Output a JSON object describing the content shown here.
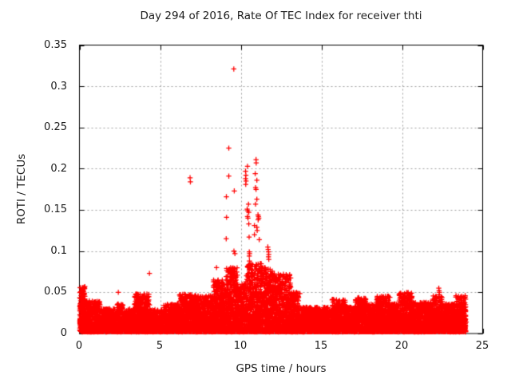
{
  "chart_data": {
    "type": "scatter",
    "title": "Day 294 of 2016, Rate Of TEC Index for receiver thti",
    "xlabel": "GPS time / hours",
    "ylabel": "ROTI / TECUs",
    "xlim": [
      0,
      25
    ],
    "ylim": [
      0,
      0.35
    ],
    "x_ticks": [
      "0",
      "5",
      "10",
      "15",
      "20",
      "25"
    ],
    "y_ticks": [
      "0",
      "0.05",
      "0.1",
      "0.15",
      "0.2",
      "0.25",
      "0.3",
      "0.35"
    ],
    "x_tick_values": [
      0,
      5,
      10,
      15,
      20,
      25
    ],
    "y_tick_values": [
      0,
      0.05,
      0.1,
      0.15,
      0.2,
      0.25,
      0.3,
      0.35
    ],
    "grid": true,
    "legend": null,
    "marker": "plus",
    "marker_color": "#ff0000",
    "baseline_ymin": 0.002,
    "baseline_segments": [
      [
        0.02,
        0.35,
        220,
        0.057
      ],
      [
        0.35,
        1.3,
        450,
        0.04
      ],
      [
        1.3,
        2.3,
        420,
        0.03
      ],
      [
        2.3,
        2.7,
        180,
        0.036
      ],
      [
        2.7,
        3.4,
        300,
        0.03
      ],
      [
        3.4,
        4.35,
        450,
        0.048
      ],
      [
        4.35,
        5.2,
        360,
        0.029
      ],
      [
        5.2,
        6.2,
        420,
        0.036
      ],
      [
        6.2,
        7.2,
        450,
        0.048
      ],
      [
        7.2,
        8.3,
        480,
        0.046
      ],
      [
        8.3,
        9.1,
        400,
        0.065
      ],
      [
        9.1,
        9.8,
        380,
        0.08
      ],
      [
        9.8,
        10.3,
        260,
        0.06
      ],
      [
        10.3,
        11.3,
        520,
        0.085
      ],
      [
        11.3,
        12.1,
        420,
        0.08
      ],
      [
        12.1,
        13.1,
        480,
        0.072
      ],
      [
        13.1,
        13.7,
        280,
        0.05
      ],
      [
        13.7,
        15.6,
        760,
        0.032
      ],
      [
        15.6,
        16.5,
        400,
        0.042
      ],
      [
        16.5,
        17.1,
        260,
        0.033
      ],
      [
        17.1,
        17.8,
        320,
        0.044
      ],
      [
        17.8,
        18.4,
        280,
        0.036
      ],
      [
        18.4,
        19.3,
        400,
        0.046
      ],
      [
        19.3,
        19.8,
        220,
        0.036
      ],
      [
        19.8,
        20.7,
        420,
        0.05
      ],
      [
        20.7,
        21.9,
        500,
        0.038
      ],
      [
        21.9,
        22.5,
        260,
        0.046
      ],
      [
        22.5,
        23.3,
        340,
        0.036
      ],
      [
        23.3,
        23.97,
        320,
        0.046
      ]
    ],
    "outliers": [
      [
        2.41,
        0.05
      ],
      [
        4.34,
        0.073
      ],
      [
        6.86,
        0.189
      ],
      [
        6.88,
        0.184
      ],
      [
        8.5,
        0.08
      ],
      [
        9.1,
        0.069
      ],
      [
        9.26,
        0.225
      ],
      [
        9.26,
        0.191
      ],
      [
        9.11,
        0.166
      ],
      [
        9.12,
        0.141
      ],
      [
        9.1,
        0.115
      ],
      [
        9.57,
        0.321
      ],
      [
        9.6,
        0.173
      ],
      [
        9.58,
        0.1
      ],
      [
        9.64,
        0.097
      ],
      [
        10.3,
        0.197
      ],
      [
        10.32,
        0.192
      ],
      [
        10.3,
        0.188
      ],
      [
        10.33,
        0.185
      ],
      [
        10.31,
        0.181
      ],
      [
        10.42,
        0.203
      ],
      [
        10.4,
        0.151
      ],
      [
        10.43,
        0.149
      ],
      [
        10.42,
        0.142
      ],
      [
        10.45,
        0.14
      ],
      [
        10.48,
        0.157
      ],
      [
        10.5,
        0.147
      ],
      [
        10.5,
        0.133
      ],
      [
        10.52,
        0.117
      ],
      [
        10.53,
        0.099
      ],
      [
        10.55,
        0.097
      ],
      [
        10.53,
        0.094
      ],
      [
        10.54,
        0.088
      ],
      [
        10.6,
        0.082
      ],
      [
        10.85,
        0.131
      ],
      [
        10.85,
        0.12
      ],
      [
        11.15,
        0.114
      ],
      [
        10.95,
        0.211
      ],
      [
        10.96,
        0.207
      ],
      [
        10.9,
        0.194
      ],
      [
        11.0,
        0.186
      ],
      [
        10.92,
        0.177
      ],
      [
        10.95,
        0.175
      ],
      [
        11.0,
        0.163
      ],
      [
        10.92,
        0.157
      ],
      [
        11.0,
        0.129
      ],
      [
        11.02,
        0.125
      ],
      [
        11.07,
        0.144
      ],
      [
        11.1,
        0.142
      ],
      [
        11.12,
        0.14
      ],
      [
        11.08,
        0.138
      ],
      [
        11.68,
        0.105
      ],
      [
        11.7,
        0.102
      ],
      [
        11.72,
        0.099
      ],
      [
        11.74,
        0.096
      ],
      [
        11.72,
        0.093
      ],
      [
        11.74,
        0.09
      ],
      [
        12.65,
        0.072
      ],
      [
        12.7,
        0.068
      ],
      [
        22.28,
        0.055
      ],
      [
        22.3,
        0.052
      ],
      [
        22.32,
        0.05
      ],
      [
        22.3,
        0.047
      ]
    ]
  },
  "colors": {
    "background": "#ffffff",
    "axis": "#000000",
    "grid": "#a0a0a0",
    "text": "#1c1c1c",
    "points": "#ff0000"
  }
}
